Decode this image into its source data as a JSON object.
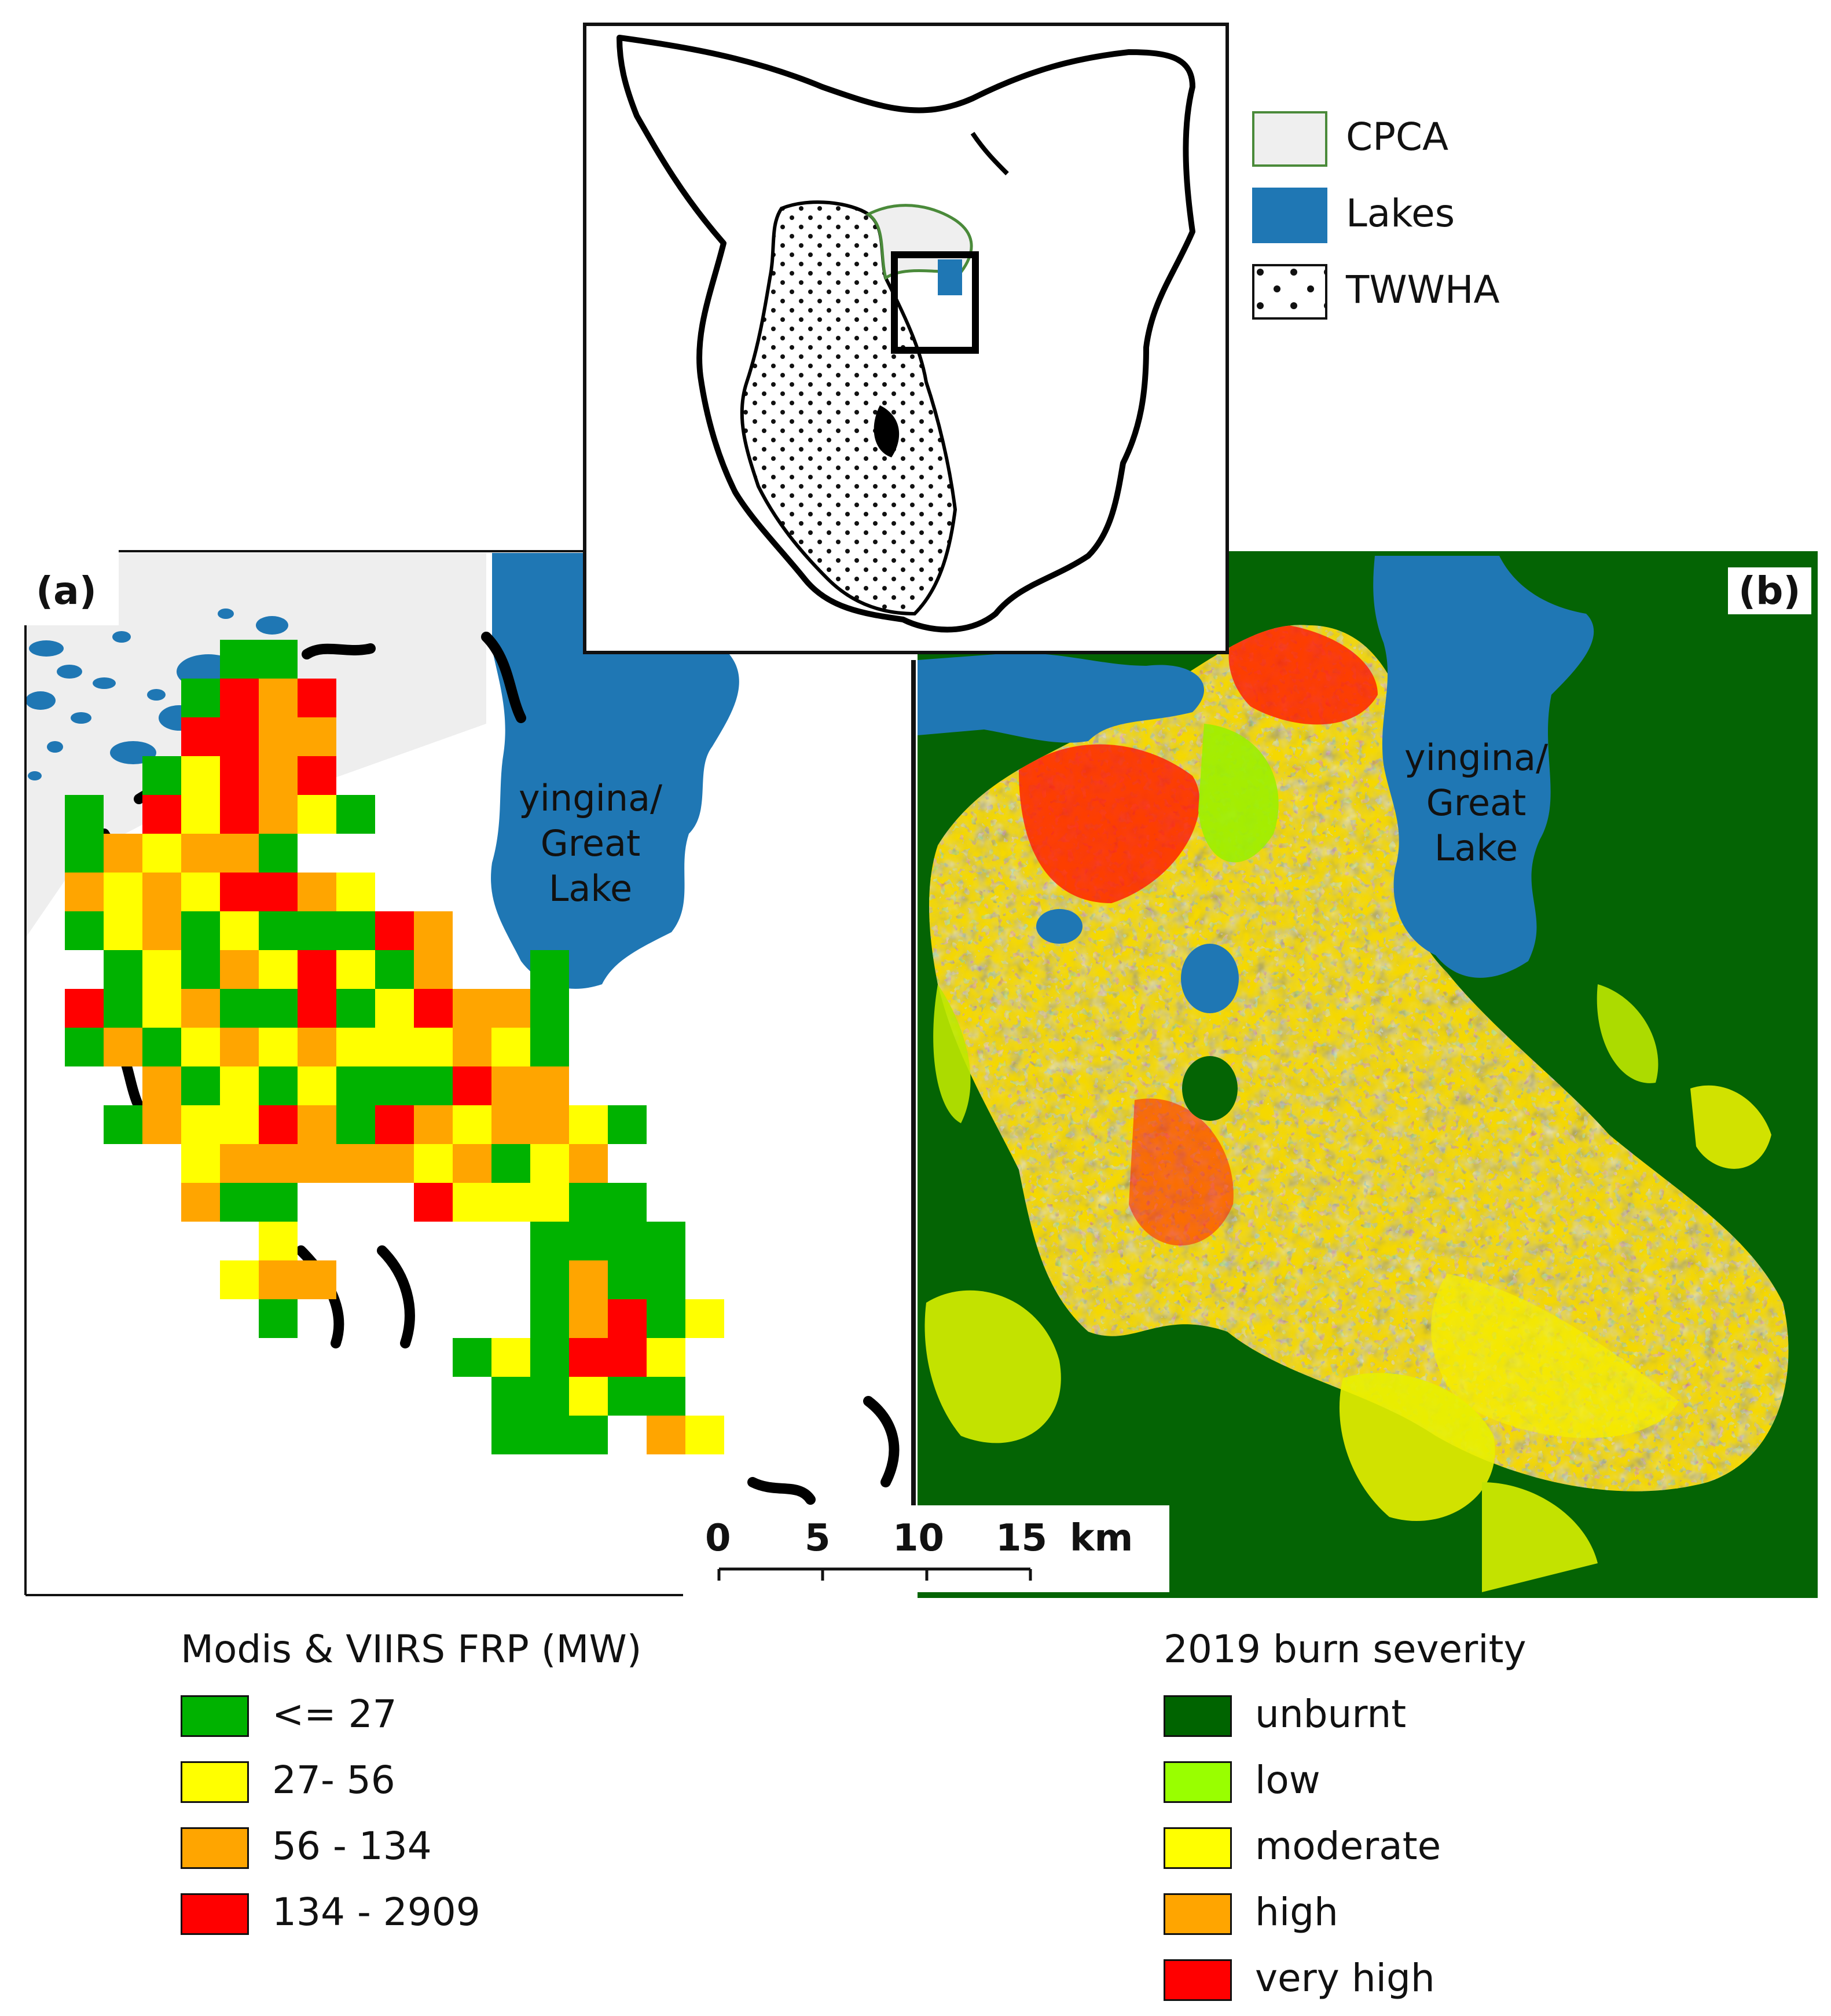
{
  "figure": {
    "panel_a_label": "(a)",
    "panel_b_label": "(b)",
    "lake_label_lines": [
      "yingina/",
      "Great",
      "Lake"
    ]
  },
  "inset_legend": {
    "items": [
      {
        "label": "CPCA",
        "color": "#efefef",
        "border": "#4a8a3a",
        "pattern": "solid"
      },
      {
        "label": "Lakes",
        "color": "#1f77b4",
        "border": "#1f77b4",
        "pattern": "solid"
      },
      {
        "label": "TWWHA",
        "color": "#ffffff",
        "border": "#111111",
        "pattern": "dots"
      }
    ]
  },
  "scale_bar": {
    "ticks": [
      "0",
      "5",
      "10",
      "15"
    ],
    "unit": "km"
  },
  "legend_frp": {
    "title": "Modis & VIIRS FRP (MW)",
    "items": [
      {
        "label": "<= 27",
        "color": "#00b200"
      },
      {
        "label": "27-  56",
        "color": "#ffff00"
      },
      {
        "label": "56 - 134",
        "color": "#ffa500"
      },
      {
        "label": "134 - 2909",
        "color": "#ff0000"
      }
    ]
  },
  "legend_severity": {
    "title": "2019 burn severity",
    "items": [
      {
        "label": "unburnt",
        "color": "#006400"
      },
      {
        "label": "low",
        "color": "#99ff00"
      },
      {
        "label": "moderate",
        "color": "#ffff00"
      },
      {
        "label": "high",
        "color": "#ffa500"
      },
      {
        "label": "very high",
        "color": "#ff0000"
      }
    ]
  }
}
